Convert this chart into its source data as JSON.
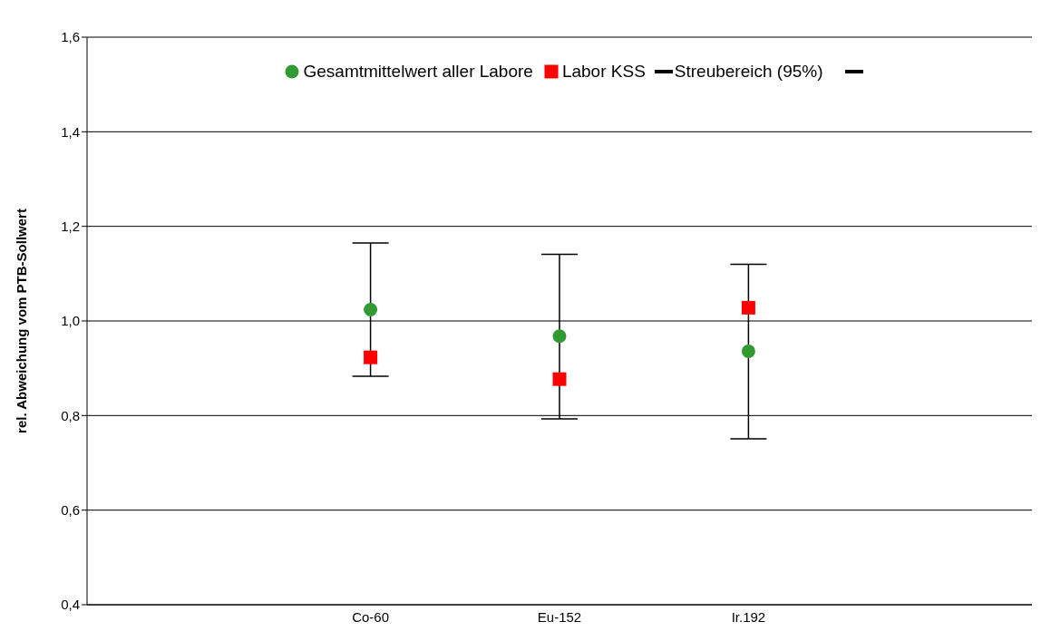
{
  "chart_data": {
    "type": "scatter",
    "ylabel": "rel. Abweichung vom PTB-Sollwert",
    "categories": [
      null,
      "Co-60",
      "Eu-152",
      "Ir.192",
      null
    ],
    "series": [
      {
        "name": "Gesamtmittelwert aller Labore",
        "color": "#339933",
        "marker": "circle",
        "values": [
          null,
          1.024,
          0.968,
          0.936,
          null
        ],
        "errors": [
          null,
          [
            0.883,
            1.165
          ],
          [
            0.793,
            1.141
          ],
          [
            0.751,
            1.12
          ],
          null
        ]
      },
      {
        "name": "Labor KSS",
        "color": "#ff0000",
        "marker": "square",
        "values": [
          null,
          0.923,
          0.877,
          1.028,
          null
        ]
      }
    ],
    "annotations": [
      "Streubereich (95%)"
    ],
    "ylim": [
      0.4,
      1.6
    ],
    "yticks": [
      {
        "value": 0.4,
        "label": "0,4"
      },
      {
        "value": 0.6,
        "label": "0,6"
      },
      {
        "value": 0.8,
        "label": "0,8"
      },
      {
        "value": 1.0,
        "label": "1,0"
      },
      {
        "value": 1.2,
        "label": "1,2"
      },
      {
        "value": 1.4,
        "label": "1,4"
      },
      {
        "value": 1.6,
        "label": "1,6"
      }
    ],
    "grid": "y",
    "legend": "top"
  }
}
